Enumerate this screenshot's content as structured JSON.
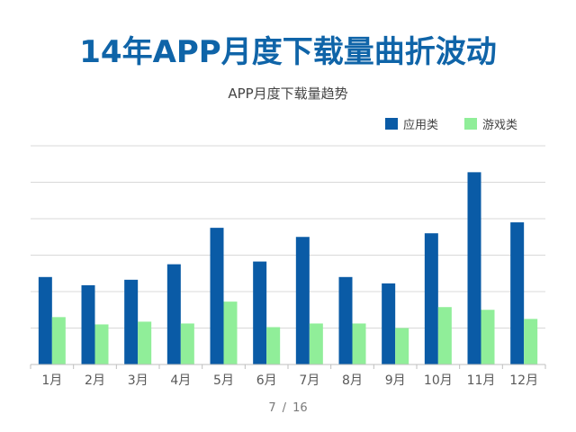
{
  "slide": {
    "title": "14年APP月度下载量曲折波动"
  },
  "pagination": {
    "current": "7",
    "separator": "/",
    "total": "16"
  },
  "colors": {
    "series_app": "#0a5ba6",
    "series_game": "#90ee99",
    "title": "#0f64a8",
    "grid": "#d9d9d9"
  },
  "chart_data": {
    "type": "bar",
    "title": "APP月度下载量趋势",
    "xlabel": "",
    "ylabel": "",
    "ylim": [
      0,
      12
    ],
    "yticks": [
      0,
      2,
      4,
      6,
      8,
      10,
      12
    ],
    "y_tick_labels_shown": false,
    "grid": true,
    "legend_position": "top-right",
    "categories": [
      "1月",
      "2月",
      "3月",
      "4月",
      "5月",
      "6月",
      "7月",
      "8月",
      "9月",
      "10月",
      "11月",
      "12月"
    ],
    "series": [
      {
        "name": "应用类",
        "color": "#0a5ba6",
        "values": [
          4.8,
          4.35,
          4.65,
          5.5,
          7.5,
          5.65,
          7.0,
          4.8,
          4.45,
          7.2,
          10.55,
          7.8
        ]
      },
      {
        "name": "游戏类",
        "color": "#90ee99",
        "values": [
          2.6,
          2.2,
          2.35,
          2.25,
          3.45,
          2.05,
          2.25,
          2.25,
          2.0,
          3.15,
          3.0,
          2.5
        ]
      }
    ]
  }
}
